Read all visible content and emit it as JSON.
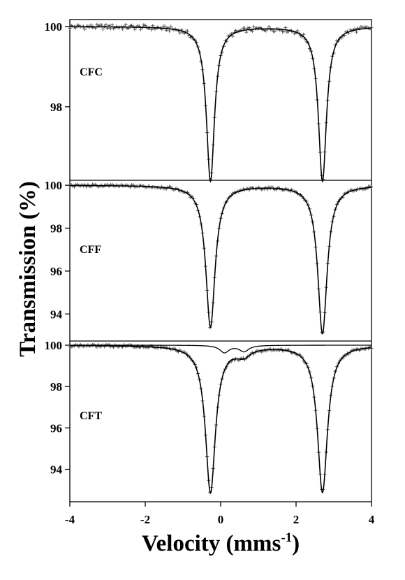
{
  "chart_data": {
    "type": "line",
    "xlabel_main": "Velocity (mms",
    "xlabel_sup": "-1",
    "xlabel_close": ")",
    "ylabel": "Transmission (%)",
    "xlim": [
      -4,
      4
    ],
    "xticks": [
      -4,
      -2,
      0,
      2,
      4
    ],
    "panels": [
      {
        "name": "CFC",
        "ylim": [
          96.1,
          100.05
        ],
        "yticks": [
          100,
          98
        ],
        "fit": {
          "baseline": 100,
          "peaks": [
            {
              "center": -0.27,
              "depth": 3.85,
              "hwhm": 0.13
            },
            {
              "center": 2.7,
              "depth": 3.85,
              "hwhm": 0.13
            }
          ]
        },
        "components": []
      },
      {
        "name": "CFF",
        "ylim": [
          93.0,
          100.1
        ],
        "yticks": [
          100,
          98,
          96,
          94
        ],
        "fit": {
          "baseline": 100,
          "peaks": [
            {
              "center": -0.27,
              "depth": 6.6,
              "hwhm": 0.15
            },
            {
              "center": 2.7,
              "depth": 6.9,
              "hwhm": 0.15
            }
          ]
        },
        "components": []
      },
      {
        "name": "CFT",
        "ylim": [
          92.6,
          100.1
        ],
        "yticks": [
          100,
          98,
          96,
          94
        ],
        "fit": {
          "baseline": 100,
          "peaks": [
            {
              "center": -0.27,
              "depth": 7.1,
              "hwhm": 0.16
            },
            {
              "center": 0.6,
              "depth": 0.4,
              "hwhm": 0.25
            },
            {
              "center": 2.7,
              "depth": 7.1,
              "hwhm": 0.16
            }
          ]
        },
        "components": [
          {
            "baseline": 100,
            "peaks": [
              {
                "center": 0.1,
                "depth": 0.35,
                "hwhm": 0.15
              },
              {
                "center": 0.62,
                "depth": 0.3,
                "hwhm": 0.15
              }
            ]
          }
        ]
      }
    ]
  }
}
